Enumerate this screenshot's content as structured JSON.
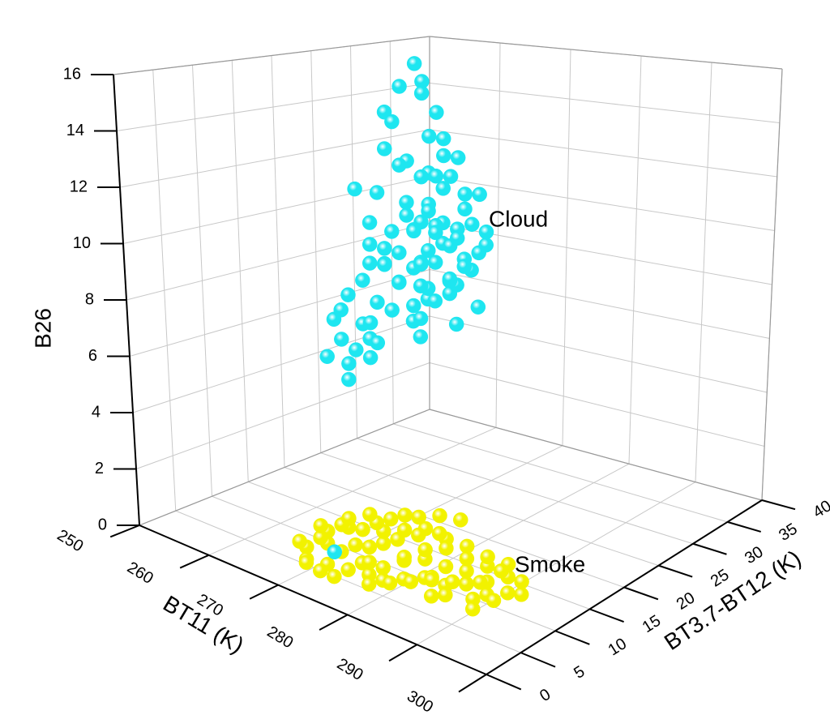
{
  "chart_data": {
    "type": "scatter3d",
    "xlabel": "BT11 (K)",
    "ylabel": "BT3.7-BT12 (K)",
    "zlabel": "B26",
    "xlim": [
      250,
      300
    ],
    "ylim": [
      0,
      40
    ],
    "zlim": [
      0,
      16
    ],
    "xticks": [
      250,
      260,
      270,
      280,
      290,
      300
    ],
    "yticks": [
      0,
      5,
      10,
      15,
      20,
      25,
      30,
      35,
      40
    ],
    "zticks": [
      0,
      2,
      4,
      6,
      8,
      10,
      12,
      14,
      16
    ],
    "grid": true,
    "series": [
      {
        "name": "Smoke",
        "color": "#f2f200",
        "x": [
          269,
          270,
          271,
          270,
          272,
          273,
          271,
          274,
          272,
          275,
          276,
          274,
          277,
          278,
          276,
          279,
          280,
          278,
          281,
          282,
          280,
          283,
          284,
          282,
          285,
          286,
          284,
          287,
          288,
          286,
          289,
          290,
          291,
          289,
          292,
          290,
          293,
          288,
          285,
          283,
          281,
          279,
          277,
          275,
          273,
          271,
          270,
          269,
          268,
          272,
          274,
          276,
          278,
          280,
          282,
          284,
          286,
          287,
          289,
          291,
          292,
          290,
          288,
          285,
          283,
          281,
          279,
          277,
          275,
          273,
          271,
          276,
          278,
          282,
          280
        ],
        "y": [
          5,
          4,
          6,
          7,
          5,
          6,
          3,
          7,
          8,
          5,
          6,
          4,
          8,
          7,
          9,
          6,
          8,
          10,
          7,
          9,
          11,
          8,
          10,
          12,
          9,
          11,
          13,
          10,
          12,
          8,
          11,
          10,
          12,
          9,
          11,
          13,
          12,
          9,
          7,
          11,
          10,
          9,
          6,
          8,
          9,
          8,
          6,
          7,
          5,
          4,
          10,
          7,
          5,
          6,
          7,
          8,
          9,
          13,
          13,
          10,
          13,
          8,
          11,
          12,
          9,
          12,
          11,
          10,
          11,
          10,
          9,
          12,
          12,
          14,
          13
        ],
        "z": [
          0.6,
          0.4,
          0.8,
          1.0,
          0.3,
          0.7,
          0.5,
          0.9,
          1.2,
          0.4,
          0.6,
          0.2,
          1.1,
          0.5,
          1.3,
          0.3,
          0.8,
          1.4,
          0.4,
          0.9,
          1.5,
          0.5,
          0.7,
          1.2,
          0.3,
          0.6,
          1.0,
          0.4,
          0.8,
          0.2,
          0.5,
          0.3,
          0.7,
          0.2,
          0.4,
          0.9,
          0.3,
          0.6,
          0.2,
          1.1,
          1.0,
          0.7,
          0.3,
          0.8,
          1.1,
          1.2,
          0.9,
          1.1,
          0.7,
          0.2,
          1.3,
          0.5,
          0.2,
          0.3,
          0.4,
          0.6,
          0.5,
          0.9,
          0.6,
          0.2,
          0.5,
          0.1,
          0.4,
          0.8,
          0.3,
          1.3,
          1.2,
          1.0,
          1.4,
          1.5,
          1.3,
          1.5,
          1.6,
          1.6,
          1.7
        ]
      },
      {
        "name": "Cloud",
        "color": "#1ee6f0",
        "x": [
          272,
          273,
          271,
          272,
          270,
          273,
          271,
          274,
          273,
          271,
          275,
          274,
          272,
          270,
          273,
          275,
          271,
          268,
          269,
          272,
          276,
          274,
          270,
          273,
          275,
          271,
          269,
          274,
          276,
          272,
          270,
          277,
          273,
          275,
          271,
          268,
          274,
          276,
          272,
          270,
          273,
          275,
          269,
          277,
          271,
          274,
          272,
          268,
          276,
          270,
          273,
          275,
          267,
          271,
          274,
          269,
          272,
          277,
          266,
          270,
          273,
          268,
          265,
          271,
          267,
          274,
          266,
          269,
          272,
          265,
          268,
          266,
          264,
          267,
          266,
          267,
          275,
          273,
          271,
          276,
          272,
          274,
          270,
          273,
          271,
          275,
          272,
          274,
          270,
          276,
          272
        ],
        "y": [
          17,
          17,
          16,
          18,
          15,
          19,
          15,
          17,
          20,
          14,
          18,
          21,
          16,
          17,
          18,
          19,
          19,
          13,
          15,
          21,
          22,
          17,
          18,
          15,
          21,
          20,
          14,
          19,
          21,
          17,
          16,
          22,
          22,
          18,
          14,
          15,
          20,
          23,
          19,
          13,
          17,
          21,
          16,
          20,
          18,
          22,
          15,
          14,
          19,
          17,
          21,
          16,
          13,
          20,
          18,
          15,
          22,
          21,
          13,
          19,
          16,
          18,
          13,
          19,
          15,
          21,
          17,
          14,
          18,
          14,
          16,
          15,
          13,
          16,
          14,
          13,
          17,
          19,
          16,
          22,
          20,
          16,
          19,
          23,
          21,
          15,
          18,
          21,
          15,
          18,
          6
        ],
        "z": [
          16.6,
          16.0,
          15.8,
          15.5,
          14.9,
          14.8,
          14.6,
          14.1,
          13.8,
          13.7,
          13.4,
          13.1,
          13.2,
          12.9,
          12.7,
          12.6,
          12.4,
          12.2,
          12.0,
          11.9,
          11.8,
          11.7,
          11.5,
          11.4,
          11.3,
          11.1,
          11.0,
          10.9,
          10.8,
          10.7,
          10.6,
          10.5,
          10.4,
          10.3,
          10.2,
          10.1,
          10.0,
          9.9,
          9.8,
          9.7,
          9.6,
          9.5,
          9.4,
          9.3,
          9.2,
          9.1,
          9.0,
          8.9,
          8.8,
          8.7,
          8.6,
          8.5,
          8.4,
          8.3,
          8.2,
          8.1,
          8.0,
          7.9,
          7.8,
          7.7,
          7.6,
          7.5,
          7.4,
          7.3,
          7.2,
          7.1,
          7.0,
          6.9,
          6.8,
          6.6,
          6.5,
          6.2,
          6.0,
          5.9,
          5.8,
          5.4,
          11.0,
          10.5,
          9.9,
          9.7,
          9.3,
          8.9,
          10.4,
          11.6,
          12.3,
          9.8,
          10.9,
          10.2,
          9.5,
          9.1,
          0.6
        ]
      }
    ]
  }
}
